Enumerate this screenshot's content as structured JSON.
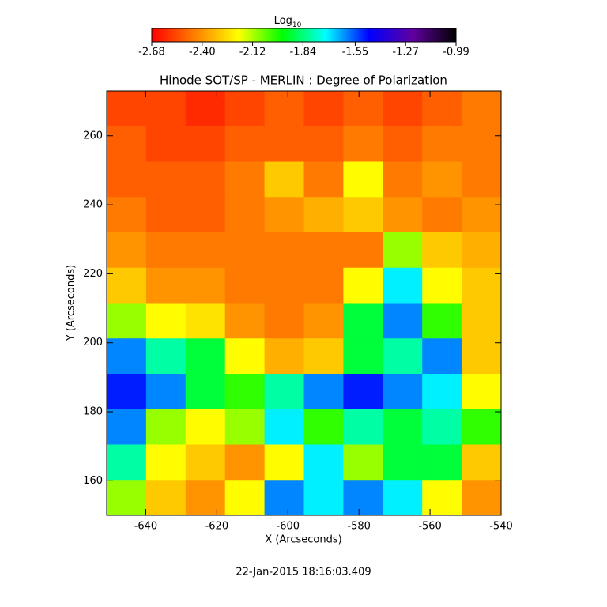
{
  "chart_data": {
    "type": "heatmap",
    "title": "Hinode SOT/SP - MERLIN : Degree of Polarization",
    "x_label": "X (Arcseconds)",
    "y_label": "Y (Arcseconds)",
    "footer": "22-Jan-2015 18:16:03.409",
    "colorbar_label": "Log",
    "colorbar_label_sub": "10",
    "clim": [
      -2.68,
      -0.99
    ],
    "colorbar_ticks": [
      -2.68,
      {
        "value": -2.4,
        "label": "-2.40"
      },
      -2.12,
      -1.84,
      -1.55,
      -1.27,
      -0.99
    ],
    "colormap": [
      "#ff0000",
      "#ff8000",
      "#ffff00",
      "#00ff00",
      "#00ffff",
      "#0000ff",
      "#6000a0",
      "#000000"
    ],
    "xlim": [
      -651,
      -540
    ],
    "ylim": [
      150,
      273
    ],
    "xticks": [
      -640,
      -620,
      -600,
      -580,
      -560,
      -540
    ],
    "yticks": [
      160,
      180,
      200,
      220,
      240,
      260
    ],
    "x": [
      -645.45,
      -634.35,
      -623.25,
      -612.15,
      -601.05,
      -589.95,
      -578.85,
      -567.75,
      -556.65,
      -545.55
    ],
    "y": [
      267.875,
      257.625,
      247.375,
      237.125,
      226.875,
      216.625,
      206.375,
      196.125,
      185.875,
      175.625,
      165.375,
      155.125
    ],
    "z": [
      [
        -2.55,
        -2.55,
        -2.6,
        -2.55,
        -2.5,
        -2.55,
        -2.5,
        -2.55,
        -2.5,
        -2.45
      ],
      [
        -2.5,
        -2.55,
        -2.55,
        -2.5,
        -2.5,
        -2.5,
        -2.45,
        -2.5,
        -2.45,
        -2.45
      ],
      [
        -2.5,
        -2.5,
        -2.5,
        -2.45,
        -2.3,
        -2.45,
        -2.2,
        -2.45,
        -2.4,
        -2.45
      ],
      [
        -2.45,
        -2.5,
        -2.5,
        -2.45,
        -2.4,
        -2.35,
        -2.3,
        -2.4,
        -2.45,
        -2.4
      ],
      [
        -2.4,
        -2.45,
        -2.45,
        -2.45,
        -2.45,
        -2.45,
        -2.45,
        -2.1,
        -2.3,
        -2.35
      ],
      [
        -2.3,
        -2.4,
        -2.4,
        -2.45,
        -2.45,
        -2.45,
        -2.2,
        -1.7,
        -2.2,
        -2.3
      ],
      [
        -2.1,
        -2.2,
        -2.25,
        -2.4,
        -2.45,
        -2.4,
        -1.9,
        -1.6,
        -2.0,
        -2.3
      ],
      [
        -1.6,
        -1.8,
        -1.9,
        -2.2,
        -2.35,
        -2.3,
        -1.9,
        -1.8,
        -1.6,
        -2.3
      ],
      [
        -1.5,
        -1.6,
        -1.9,
        -2.0,
        -1.8,
        -1.6,
        -1.5,
        -1.6,
        -1.7,
        -2.2
      ],
      [
        -1.6,
        -2.1,
        -2.2,
        -2.1,
        -1.7,
        -2.0,
        -1.8,
        -1.9,
        -1.8,
        -2.0
      ],
      [
        -1.8,
        -2.2,
        -2.3,
        -2.4,
        -2.2,
        -1.7,
        -2.1,
        -1.9,
        -1.9,
        -2.3
      ],
      [
        -2.1,
        -2.3,
        -2.4,
        -2.2,
        -1.6,
        -1.7,
        -1.6,
        -1.7,
        -2.2,
        -2.4
      ]
    ]
  }
}
